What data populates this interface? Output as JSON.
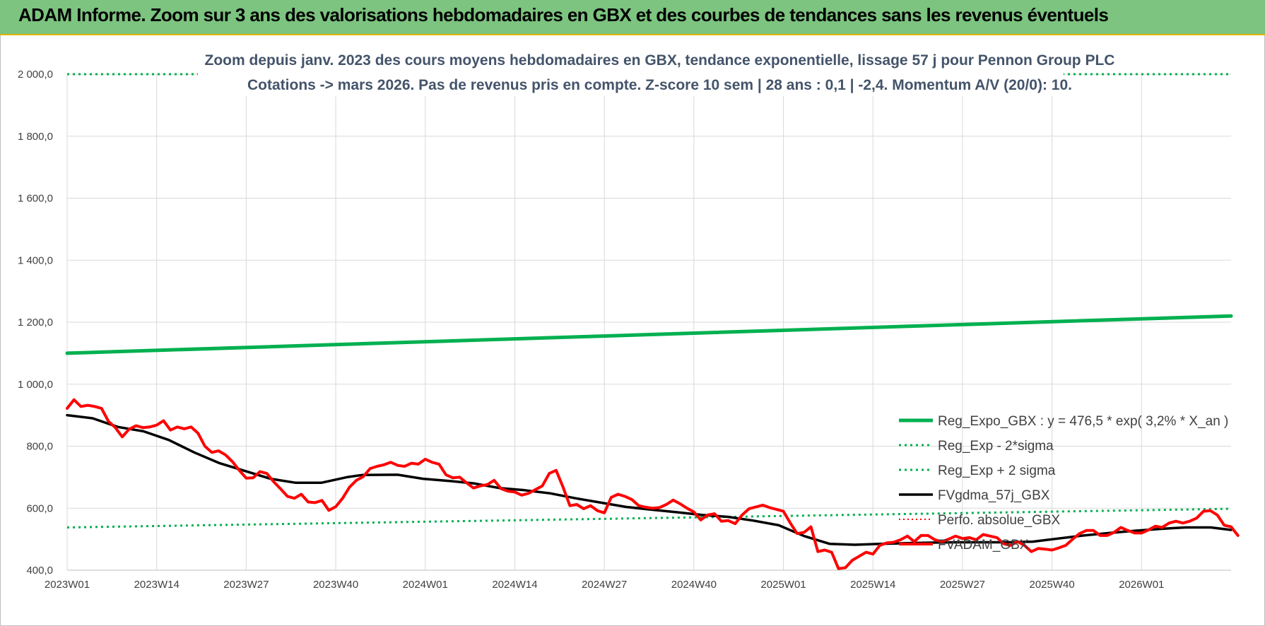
{
  "banner": {
    "title": "ADAM Informe. Zoom sur 3 ans des valorisations hebdomadaires en GBX et des courbes de tendances sans les revenus éventuels"
  },
  "chart_data": {
    "type": "line",
    "title": "Zoom depuis janv. 2023 des cours moyens hebdomadaires en GBX, tendance exponentielle, lissage 57 j pour Pennon Group PLC",
    "subtitle": "Cotations -> mars 2026. Pas de revenus pris en compte. Z-score 10 sem | 28 ans : 0,1 | -2,4. Momentum A/V (20/0): 10.",
    "xlabel": "",
    "ylabel": "",
    "ylim": [
      400,
      2000
    ],
    "yticks": [
      "400,0",
      "600,0",
      "800,0",
      "1 000,0",
      "1 200,0",
      "1 400,0",
      "1 600,0",
      "1 800,0",
      "2 000,0"
    ],
    "ytick_values": [
      400,
      600,
      800,
      1000,
      1200,
      1400,
      1600,
      1800,
      2000
    ],
    "xticks": [
      "2023W01",
      "2023W14",
      "2023W27",
      "2023W40",
      "2024W01",
      "2024W14",
      "2024W27",
      "2024W40",
      "2025W01",
      "2025W14",
      "2025W27",
      "2025W40",
      "2026W01"
    ],
    "xtick_weeks": [
      0,
      13,
      26,
      39,
      52,
      65,
      78,
      91,
      104,
      117,
      130,
      143,
      156
    ],
    "x_count": 170,
    "grid": true,
    "legend_position": "right",
    "series": [
      {
        "name": "Reg_Expo_GBX : y = 476,5 * exp( 3,2% *  X_an )",
        "color": "#00b050",
        "style": "solid",
        "width": 5,
        "points": [
          [
            0,
            1100
          ],
          [
            169,
            1220
          ]
        ]
      },
      {
        "name": "Reg_Exp - 2*sigma",
        "color": "#00b050",
        "style": "dotted",
        "width": 3,
        "points": [
          [
            0,
            538
          ],
          [
            169,
            598
          ]
        ]
      },
      {
        "name": "Reg_Exp + 2 sigma",
        "color": "#00b050",
        "style": "dotted",
        "width": 3,
        "points": [
          [
            0,
            2000
          ],
          [
            169,
            2000
          ]
        ]
      },
      {
        "name": "FVgdma_57j_GBX",
        "color": "#000000",
        "style": "solid",
        "width": 3.5,
        "points": [
          [
            0,
            900
          ],
          [
            5,
            890
          ],
          [
            10,
            862
          ],
          [
            15,
            848
          ],
          [
            20,
            820
          ],
          [
            25,
            780
          ],
          [
            30,
            745
          ],
          [
            35,
            720
          ],
          [
            40,
            695
          ],
          [
            45,
            682
          ],
          [
            50,
            682
          ],
          [
            55,
            700
          ],
          [
            58,
            707
          ],
          [
            65,
            708
          ],
          [
            70,
            695
          ],
          [
            75,
            688
          ],
          [
            80,
            680
          ],
          [
            85,
            665
          ],
          [
            90,
            658
          ],
          [
            95,
            648
          ],
          [
            100,
            632
          ],
          [
            105,
            618
          ],
          [
            110,
            604
          ],
          [
            115,
            595
          ],
          [
            120,
            587
          ],
          [
            125,
            578
          ],
          [
            130,
            572
          ],
          [
            135,
            560
          ],
          [
            140,
            545
          ],
          [
            145,
            510
          ],
          [
            150,
            485
          ],
          [
            155,
            482
          ],
          [
            160,
            485
          ],
          [
            165,
            487
          ],
          [
            170,
            489
          ],
          [
            175,
            490
          ],
          [
            180,
            490
          ],
          [
            185,
            490
          ],
          [
            190,
            492
          ],
          [
            195,
            502
          ],
          [
            200,
            512
          ],
          [
            205,
            520
          ],
          [
            210,
            527
          ],
          [
            215,
            533
          ],
          [
            220,
            538
          ],
          [
            225,
            538
          ],
          [
            229,
            530
          ]
        ]
      },
      {
        "name": "Perfo. absolue_GBX",
        "color": "#ff0000",
        "style": "dotted",
        "width": 2,
        "points": []
      },
      {
        "name": "FVADAM_GBX",
        "color": "#ff0000",
        "style": "solid",
        "width": 4,
        "points": [
          [
            0,
            922
          ],
          [
            1,
            950
          ],
          [
            2,
            928
          ],
          [
            3,
            932
          ],
          [
            4,
            928
          ],
          [
            5,
            922
          ],
          [
            6,
            880
          ],
          [
            7,
            860
          ],
          [
            8,
            830
          ],
          [
            9,
            855
          ],
          [
            10,
            866
          ],
          [
            11,
            860
          ],
          [
            12,
            862
          ],
          [
            13,
            868
          ],
          [
            14,
            882
          ],
          [
            15,
            852
          ],
          [
            16,
            862
          ],
          [
            17,
            856
          ],
          [
            18,
            862
          ],
          [
            19,
            842
          ],
          [
            20,
            800
          ],
          [
            21,
            780
          ],
          [
            22,
            785
          ],
          [
            23,
            772
          ],
          [
            24,
            750
          ],
          [
            25,
            722
          ],
          [
            26,
            697
          ],
          [
            27,
            698
          ],
          [
            28,
            718
          ],
          [
            29,
            712
          ],
          [
            30,
            685
          ],
          [
            31,
            662
          ],
          [
            32,
            638
          ],
          [
            33,
            632
          ],
          [
            34,
            645
          ],
          [
            35,
            620
          ],
          [
            36,
            618
          ],
          [
            37,
            625
          ],
          [
            38,
            593
          ],
          [
            39,
            605
          ],
          [
            40,
            632
          ],
          [
            41,
            668
          ],
          [
            42,
            690
          ],
          [
            43,
            702
          ],
          [
            44,
            728
          ],
          [
            45,
            735
          ],
          [
            46,
            740
          ],
          [
            47,
            748
          ],
          [
            48,
            738
          ],
          [
            49,
            735
          ],
          [
            50,
            745
          ],
          [
            51,
            742
          ],
          [
            52,
            758
          ],
          [
            53,
            748
          ],
          [
            54,
            742
          ],
          [
            55,
            708
          ],
          [
            56,
            698
          ],
          [
            57,
            700
          ],
          [
            58,
            682
          ],
          [
            59,
            665
          ],
          [
            60,
            672
          ],
          [
            61,
            676
          ],
          [
            62,
            690
          ],
          [
            63,
            663
          ],
          [
            64,
            655
          ],
          [
            65,
            652
          ],
          [
            66,
            642
          ],
          [
            67,
            648
          ],
          [
            68,
            660
          ],
          [
            69,
            672
          ],
          [
            70,
            712
          ],
          [
            71,
            722
          ],
          [
            72,
            668
          ],
          [
            73,
            608
          ],
          [
            74,
            612
          ],
          [
            75,
            598
          ],
          [
            76,
            608
          ],
          [
            77,
            592
          ],
          [
            78,
            585
          ],
          [
            79,
            635
          ],
          [
            80,
            645
          ],
          [
            81,
            638
          ],
          [
            82,
            628
          ],
          [
            83,
            608
          ],
          [
            84,
            603
          ],
          [
            85,
            600
          ],
          [
            86,
            602
          ],
          [
            87,
            612
          ],
          [
            88,
            626
          ],
          [
            89,
            614
          ],
          [
            90,
            600
          ],
          [
            91,
            588
          ],
          [
            92,
            562
          ],
          [
            93,
            578
          ],
          [
            94,
            582
          ],
          [
            95,
            558
          ],
          [
            96,
            560
          ],
          [
            97,
            550
          ],
          [
            98,
            578
          ],
          [
            99,
            598
          ],
          [
            100,
            604
          ],
          [
            101,
            610
          ],
          [
            102,
            602
          ],
          [
            103,
            596
          ],
          [
            104,
            590
          ],
          [
            105,
            552
          ],
          [
            106,
            518
          ],
          [
            107,
            522
          ],
          [
            108,
            540
          ],
          [
            109,
            460
          ],
          [
            110,
            465
          ],
          [
            111,
            458
          ],
          [
            112,
            405
          ],
          [
            113,
            408
          ],
          [
            114,
            432
          ],
          [
            115,
            445
          ],
          [
            116,
            458
          ],
          [
            117,
            452
          ],
          [
            118,
            480
          ],
          [
            119,
            488
          ],
          [
            120,
            490
          ],
          [
            121,
            498
          ],
          [
            122,
            510
          ],
          [
            123,
            492
          ],
          [
            124,
            512
          ],
          [
            125,
            512
          ],
          [
            126,
            498
          ],
          [
            127,
            492
          ],
          [
            128,
            500
          ],
          [
            129,
            510
          ],
          [
            130,
            502
          ],
          [
            131,
            505
          ],
          [
            132,
            498
          ],
          [
            133,
            515
          ],
          [
            134,
            510
          ],
          [
            135,
            505
          ],
          [
            136,
            485
          ],
          [
            137,
            480
          ],
          [
            138,
            492
          ],
          [
            139,
            480
          ],
          [
            140,
            460
          ],
          [
            141,
            470
          ],
          [
            142,
            468
          ],
          [
            143,
            465
          ],
          [
            144,
            472
          ],
          [
            145,
            480
          ],
          [
            146,
            500
          ],
          [
            147,
            518
          ],
          [
            148,
            528
          ],
          [
            149,
            528
          ],
          [
            150,
            512
          ],
          [
            151,
            512
          ],
          [
            152,
            522
          ],
          [
            153,
            538
          ],
          [
            154,
            528
          ],
          [
            155,
            520
          ],
          [
            156,
            520
          ],
          [
            157,
            530
          ],
          [
            158,
            542
          ],
          [
            159,
            538
          ],
          [
            160,
            552
          ],
          [
            161,
            558
          ],
          [
            162,
            552
          ],
          [
            163,
            558
          ],
          [
            164,
            568
          ],
          [
            165,
            590
          ],
          [
            166,
            592
          ],
          [
            167,
            578
          ],
          [
            168,
            545
          ],
          [
            169,
            540
          ],
          [
            170,
            512
          ]
        ]
      }
    ]
  }
}
